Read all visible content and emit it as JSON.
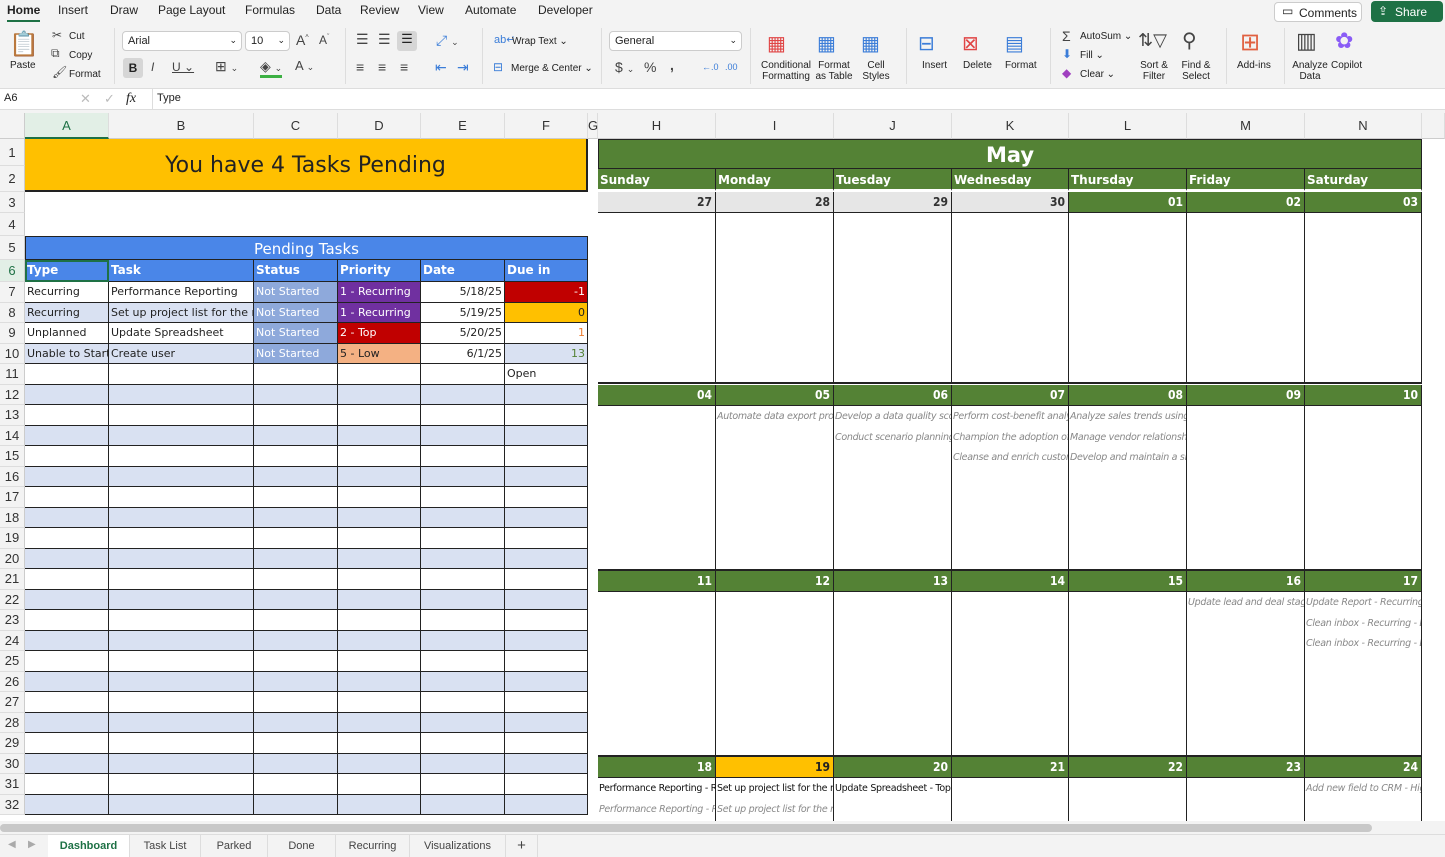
{
  "ribbon": {
    "tabs": [
      "Home",
      "Insert",
      "Draw",
      "Page Layout",
      "Formulas",
      "Data",
      "Review",
      "View",
      "Automate",
      "Developer"
    ],
    "active_tab": "Home",
    "comments_label": "Comments",
    "share_label": "Share",
    "paste": "Paste",
    "cut": "Cut",
    "copy": "Copy",
    "format_painter": "Format",
    "font_name": "Arial",
    "font_size": "10",
    "wrap_text": "Wrap Text",
    "merge_center": "Merge & Center",
    "number_format": "General",
    "conditional_formatting": "Conditional Formatting",
    "format_as_table": "Format as Table",
    "cell_styles": "Cell Styles",
    "insert": "Insert",
    "delete": "Delete",
    "format": "Format",
    "autosum": "AutoSum",
    "fill": "Fill",
    "clear": "Clear",
    "sort_filter": "Sort & Filter",
    "find_select": "Find & Select",
    "addins": "Add-ins",
    "analyze_data": "Analyze Data",
    "copilot": "Copilot"
  },
  "formula_bar": {
    "name_box": "A6",
    "fx": "fx",
    "value": "Type"
  },
  "columns": [
    "A",
    "B",
    "C",
    "D",
    "E",
    "F",
    "G",
    "H",
    "I",
    "J",
    "K",
    "L",
    "M",
    "N"
  ],
  "selected_cell": "A6",
  "banner": {
    "text": "You have 4 Tasks Pending",
    "color": "#ffc000"
  },
  "pending": {
    "title": "Pending Tasks",
    "headers": [
      "Type",
      "Task",
      "Status",
      "Priority",
      "Date",
      "Due in"
    ],
    "rows": [
      {
        "type": "Recurring",
        "task": "Performance Reporting",
        "status": "Not Started",
        "priority": "1 - Recurring",
        "date": "5/18/25",
        "due": "-1",
        "priority_color": "#7030a0",
        "due_bg": "#c00000",
        "due_color": "#ffffff"
      },
      {
        "type": "Recurring",
        "task": "Set up project list for the next",
        "status": "Not Started",
        "priority": "1 - Recurring",
        "date": "5/19/25",
        "due": "0",
        "priority_color": "#7030a0",
        "due_bg": "#ffc000",
        "due_color": "#222222"
      },
      {
        "type": "Unplanned",
        "task": "Update Spreadsheet",
        "status": "Not Started",
        "priority": "2 - Top",
        "date": "5/20/25",
        "due": "1",
        "priority_color": "#c00000",
        "due_bg": "",
        "due_color": "#ed7d31"
      },
      {
        "type": "Unable to Start",
        "task": "Create user",
        "status": "Not Started",
        "priority": "5 - Low",
        "date": "6/1/25",
        "due": "13",
        "priority_color": "#f4b183",
        "due_bg": "",
        "due_color": "#548235"
      }
    ],
    "footer_label": "Open"
  },
  "calendar": {
    "month": "May",
    "weekdays": [
      "Sunday",
      "Monday",
      "Tuesday",
      "Wednesday",
      "Thursday",
      "Friday",
      "Saturday"
    ],
    "weeks": [
      [
        {
          "d": "27",
          "prev": true,
          "ev": []
        },
        {
          "d": "28",
          "prev": true,
          "ev": []
        },
        {
          "d": "29",
          "prev": true,
          "ev": []
        },
        {
          "d": "30",
          "prev": true,
          "ev": []
        },
        {
          "d": "01",
          "ev": []
        },
        {
          "d": "02",
          "ev": []
        },
        {
          "d": "03",
          "ev": []
        }
      ],
      [
        {
          "d": "04",
          "ev": []
        },
        {
          "d": "05",
          "ev": [
            {
              "t": "Automate data export process",
              "s": "past"
            }
          ]
        },
        {
          "d": "06",
          "ev": [
            {
              "t": "Develop a data quality scorecard",
              "s": "past"
            },
            {
              "t": "Conduct scenario planning for",
              "s": "past"
            }
          ]
        },
        {
          "d": "07",
          "ev": [
            {
              "t": "Perform cost-benefit analysis",
              "s": "past"
            },
            {
              "t": "Champion the adoption of a",
              "s": "past"
            },
            {
              "t": "Cleanse and enrich customer",
              "s": "past"
            }
          ]
        },
        {
          "d": "08",
          "ev": [
            {
              "t": "Analyze sales trends using",
              "s": "past"
            },
            {
              "t": "Manage vendor relationships",
              "s": "past"
            },
            {
              "t": "Develop and maintain a shared",
              "s": "past"
            }
          ]
        },
        {
          "d": "09",
          "ev": []
        },
        {
          "d": "10",
          "ev": []
        }
      ],
      [
        {
          "d": "11",
          "ev": []
        },
        {
          "d": "12",
          "ev": []
        },
        {
          "d": "13",
          "ev": []
        },
        {
          "d": "14",
          "ev": []
        },
        {
          "d": "15",
          "ev": []
        },
        {
          "d": "16",
          "ev": [
            {
              "t": "Update lead and deal stages",
              "s": "past"
            }
          ]
        },
        {
          "d": "17",
          "ev": [
            {
              "t": "Update Report - Recurring -",
              "s": "past"
            },
            {
              "t": "Clean inbox - Recurring - Do",
              "s": "past"
            },
            {
              "t": "Clean inbox - Recurring - Do",
              "s": "past"
            }
          ]
        }
      ],
      [
        {
          "d": "18",
          "ev": [
            {
              "t": "Performance Reporting - Re",
              "s": "cur"
            },
            {
              "t": "Performance Reporting - Re",
              "s": "past"
            }
          ]
        },
        {
          "d": "19",
          "today": true,
          "ev": [
            {
              "t": "Set up project list for the ne",
              "s": "cur"
            },
            {
              "t": "Set up project list for the ne",
              "s": "past"
            }
          ]
        },
        {
          "d": "20",
          "ev": [
            {
              "t": "Update Spreadsheet - Top -",
              "s": "cur"
            }
          ]
        },
        {
          "d": "21",
          "ev": []
        },
        {
          "d": "22",
          "ev": []
        },
        {
          "d": "23",
          "ev": []
        },
        {
          "d": "24",
          "ev": [
            {
              "t": "Add new field to CRM - High",
              "s": "past"
            }
          ]
        }
      ]
    ]
  },
  "sheet_tabs": [
    "Dashboard",
    "Task List",
    "Parked",
    "Done",
    "Recurring",
    "Visualizations"
  ],
  "active_sheet": "Dashboard",
  "add_sheet": "+",
  "colors": {
    "header_blue": "#4a86e8",
    "band_blue": "#d9e1f2",
    "status_blue": "#8ea9db",
    "calendar_green": "#548235",
    "excel_green": "#1e7145"
  }
}
